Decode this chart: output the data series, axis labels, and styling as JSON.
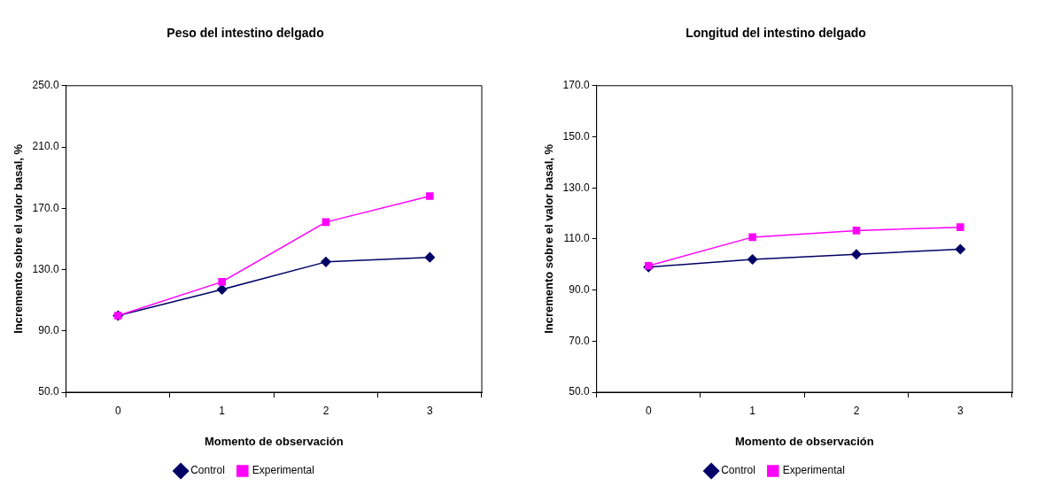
{
  "chart_data": [
    {
      "type": "line",
      "title": "Peso del intestino delgado",
      "xlabel": "Momento de observación",
      "ylabel": "Incremento sobre el valor basal, %",
      "categories": [
        "0",
        "1",
        "2",
        "3"
      ],
      "series": [
        {
          "name": "Control",
          "color": "#000066",
          "marker": "diamond",
          "values": [
            100,
            117,
            135,
            138
          ]
        },
        {
          "name": "Experimental",
          "color": "#ff00ff",
          "marker": "square",
          "values": [
            100,
            122,
            161,
            178
          ]
        }
      ],
      "ylim": [
        50,
        250
      ],
      "yticks": [
        {
          "value": 50,
          "label": "50.0"
        },
        {
          "value": 90,
          "label": "90.0"
        },
        {
          "value": 130,
          "label": "130.0"
        },
        {
          "value": 170,
          "label": "170.0"
        },
        {
          "value": 210,
          "label": "210.0"
        },
        {
          "value": 250,
          "label": "250.0"
        }
      ],
      "grid": false,
      "legend": "bottom"
    },
    {
      "type": "line",
      "title": "Longitud del intestino delgado",
      "xlabel": "Momento de observación",
      "ylabel": "Incremento sobre el valor basal, %",
      "categories": [
        "0",
        "1",
        "2",
        "3"
      ],
      "series": [
        {
          "name": "Control",
          "color": "#000066",
          "marker": "diamond",
          "values": [
            99,
            102,
            104,
            106
          ]
        },
        {
          "name": "Experimental",
          "color": "#ff00ff",
          "marker": "square",
          "values": [
            99.5,
            110.7,
            113.3,
            114.6
          ]
        }
      ],
      "ylim": [
        50,
        170
      ],
      "yticks": [
        {
          "value": 50,
          "label": "50.0"
        },
        {
          "value": 70,
          "label": "70.0"
        },
        {
          "value": 90,
          "label": "90.0"
        },
        {
          "value": 110,
          "label": "110.0"
        },
        {
          "value": 130,
          "label": "130.0"
        },
        {
          "value": 150,
          "label": "150.0"
        },
        {
          "value": 170,
          "label": "170.0"
        }
      ],
      "grid": false,
      "legend": "bottom"
    }
  ]
}
